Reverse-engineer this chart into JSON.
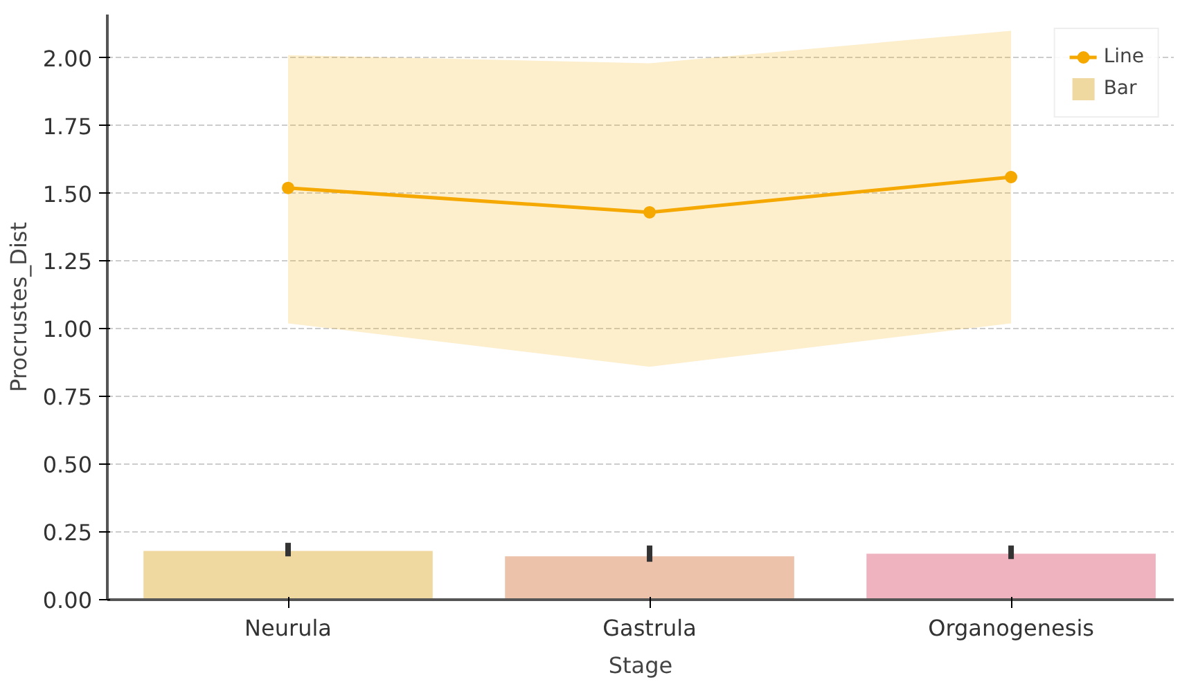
{
  "chart_data": {
    "type": "bar",
    "xlabel": "Stage",
    "ylabel": "Procrustes_Dist",
    "categories": [
      "Neurula",
      "Gastrula",
      "Organogenesis"
    ],
    "series": [
      {
        "name": "Line",
        "type": "line",
        "color": "#f5a800",
        "values": [
          1.52,
          1.43,
          1.56
        ],
        "lower": [
          1.02,
          0.86,
          1.02
        ],
        "upper": [
          2.01,
          1.98,
          2.1
        ]
      },
      {
        "name": "Bar",
        "colors": [
          "#efd9a0",
          "#ecc2ab",
          "#efb3c0"
        ],
        "values": [
          0.18,
          0.16,
          0.17
        ],
        "errors": [
          [
            0.16,
            0.21
          ],
          [
            0.14,
            0.2
          ],
          [
            0.15,
            0.2
          ]
        ]
      }
    ],
    "ylim": [
      0,
      2.16
    ],
    "yticks": [
      {
        "value": 0,
        "label": "0.00"
      },
      {
        "value": 0.25,
        "label": "0.25"
      },
      {
        "value": 0.5,
        "label": "0.50"
      },
      {
        "value": 0.75,
        "label": "0.75"
      },
      {
        "value": 1.0,
        "label": "1.00"
      },
      {
        "value": 1.25,
        "label": "1.25"
      },
      {
        "value": 1.5,
        "label": "1.50"
      },
      {
        "value": 1.75,
        "label": "1.75"
      },
      {
        "value": 2.0,
        "label": "2.00"
      }
    ],
    "grid": "y",
    "legend": "top right",
    "marker": "circle"
  }
}
